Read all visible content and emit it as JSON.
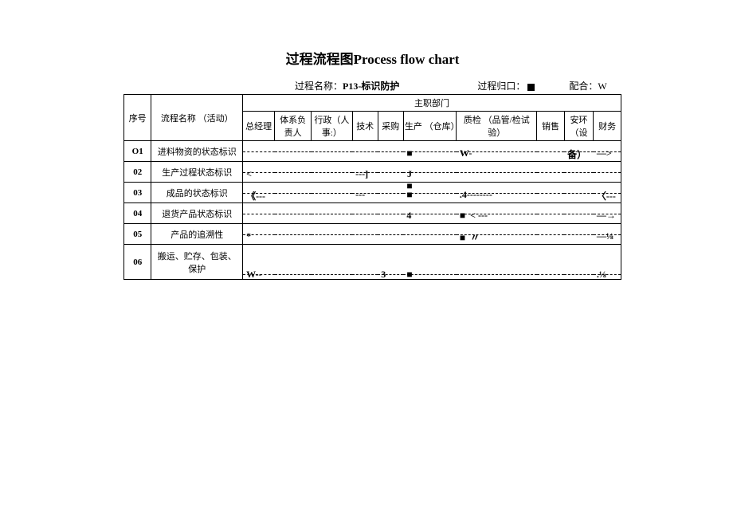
{
  "title": "过程流程图Process flow chart",
  "meta": {
    "process_name_label": "过程名称：",
    "process_name": "P13-标识防护",
    "owner_label": "过程归口：",
    "coop_label": "配合：W"
  },
  "header": {
    "seq": "序号",
    "activity": "流程名称 （活动）",
    "dept_group": "主职部门",
    "gm": "总经理",
    "sys": "体系负责人",
    "hr": "行政（人事:）",
    "tech": "技术",
    "pur": "采购",
    "prod": "生产 （仓库）",
    "qc": "质检\n（品管/检试验）",
    "sales": "销售",
    "ehs": "安环（设",
    "fin": "财务"
  },
  "rows": [
    {
      "seq": "O1",
      "name": "进料物资的状态标识",
      "cells": [
        "",
        "",
        "",
        "",
        "",
        "■",
        "W-",
        "",
        "备）",
        "—>"
      ]
    },
    {
      "seq": "02",
      "name": "生产过程状态标识",
      "cells": [
        "<",
        "",
        "",
        "---]",
        "",
        "J\n■",
        "",
        "",
        "",
        ""
      ]
    },
    {
      "seq": "03",
      "name": "成品的状态标识",
      "cells": [
        "《---",
        "",
        "",
        "---",
        "",
        "■",
        ".4--------",
        "",
        "",
        "〈---"
      ]
    },
    {
      "seq": "04",
      "name": "退货产品状态标识",
      "cells": [
        "",
        "",
        "",
        "",
        "",
        "4",
        "■  < ---",
        "",
        "",
        "—→"
      ]
    },
    {
      "seq": "05",
      "name": "产品的追溯性",
      "cells": [
        "*",
        "",
        "",
        "",
        "",
        "",
        "■  〃",
        "",
        "",
        "—⅛"
      ]
    },
    {
      "seq": "06",
      "name": "搬运、贮存、包装、 保护",
      "cells": [
        "W--",
        "",
        "",
        "",
        "3",
        "■",
        "",
        "",
        "",
        ".⅛"
      ]
    }
  ]
}
